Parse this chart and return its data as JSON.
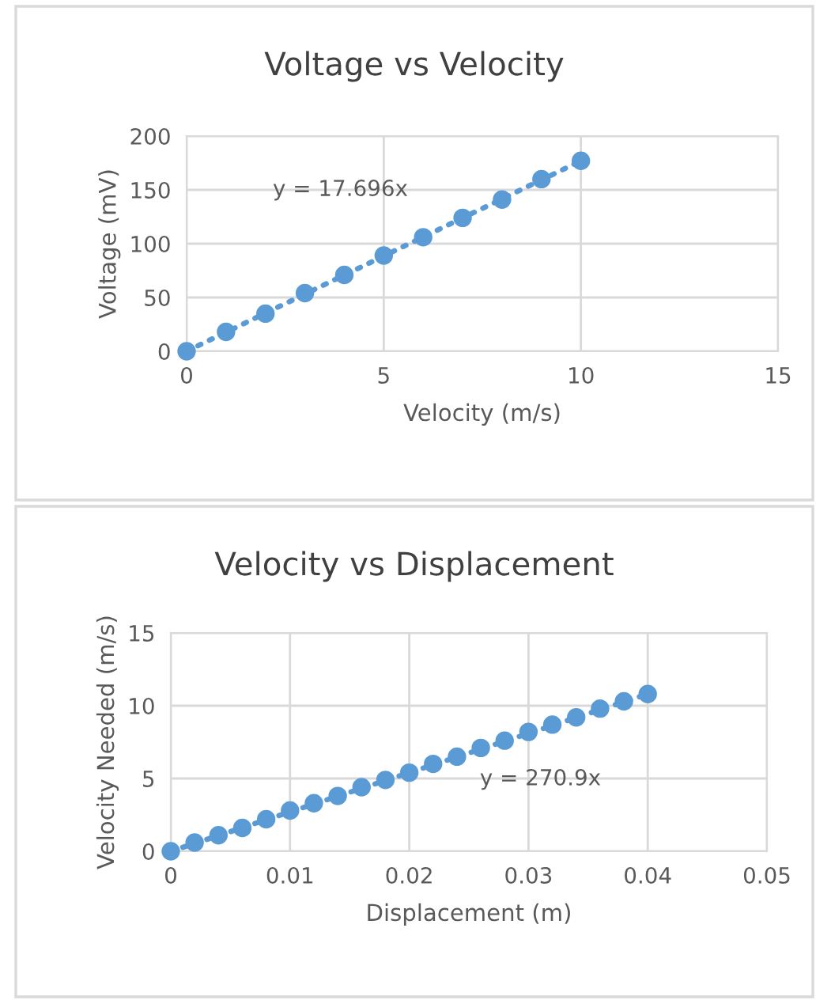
{
  "chart_data": [
    {
      "type": "scatter",
      "title": "Voltage vs Velocity",
      "xlabel": "Velocity (m/s)",
      "ylabel": "Voltage (mV)",
      "xlim": [
        0,
        15
      ],
      "xticks": [
        0,
        5,
        10,
        15
      ],
      "ylim": [
        0,
        200
      ],
      "yticks": [
        0,
        50,
        100,
        150,
        200
      ],
      "grid": true,
      "legend": false,
      "annotations": [
        "y = 17.696x"
      ],
      "series": [
        {
          "color": "#5b9bd5",
          "marker": "circle",
          "x": [
            0,
            1,
            2,
            3,
            4,
            5,
            6,
            7,
            8,
            9,
            10
          ],
          "values": [
            0,
            18,
            35,
            54,
            71,
            89,
            106,
            124,
            141,
            160,
            177
          ]
        },
        {
          "type": "line",
          "color": "#5b9bd5",
          "line_style": "dotted",
          "x": [
            0,
            10
          ],
          "values": [
            0,
            177
          ]
        }
      ]
    },
    {
      "type": "scatter",
      "title": "Velocity vs Displacement",
      "xlabel": "Displacement (m)",
      "ylabel": "Velocity Needed (m/s)",
      "xlim": [
        0,
        0.05
      ],
      "xticks": [
        0,
        0.01,
        0.02,
        0.03,
        0.04,
        0.05
      ],
      "ylim": [
        0,
        15
      ],
      "yticks": [
        0,
        5,
        10,
        15
      ],
      "grid": true,
      "legend": false,
      "annotations": [
        "y = 270.9x"
      ],
      "series": [
        {
          "color": "#5b9bd5",
          "marker": "circle",
          "x": [
            0,
            0.002,
            0.004,
            0.006,
            0.008,
            0.01,
            0.012,
            0.014,
            0.016,
            0.018,
            0.02,
            0.022,
            0.024,
            0.026,
            0.028,
            0.03,
            0.032,
            0.034,
            0.036,
            0.038,
            0.04
          ],
          "values": [
            0,
            0.6,
            1.1,
            1.6,
            2.2,
            2.8,
            3.3,
            3.8,
            4.4,
            4.9,
            5.4,
            6.0,
            6.5,
            7.1,
            7.6,
            8.2,
            8.7,
            9.2,
            9.8,
            10.3,
            10.8
          ]
        },
        {
          "type": "line",
          "color": "#5b9bd5",
          "line_style": "dotted",
          "x": [
            0,
            0.04
          ],
          "values": [
            0,
            10.8
          ]
        }
      ]
    }
  ]
}
